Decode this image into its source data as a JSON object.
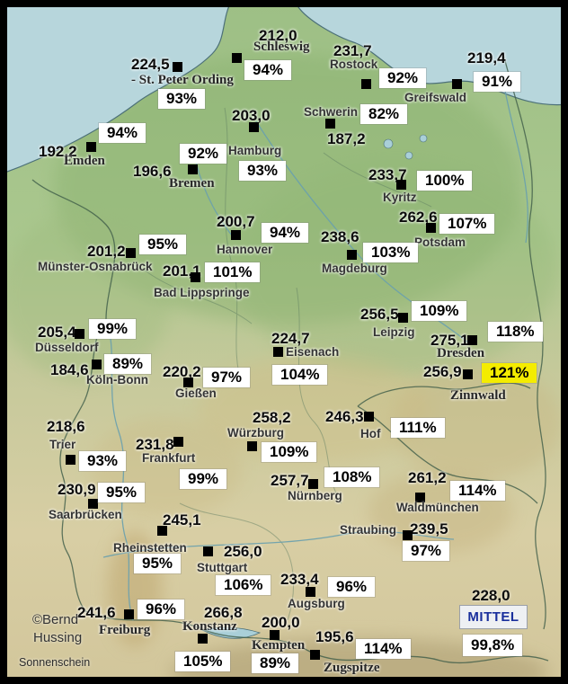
{
  "credits": {
    "copyright_line1": "©Bernd",
    "copyright_line2": "Hussing",
    "caption": "Sonnenschein"
  },
  "mittel": {
    "value": "228,0",
    "label": "MITTEL",
    "percent": "99,8%"
  },
  "colors": {
    "highlight_percent_bg": "#f4ec00",
    "percent_box_bg": "#ffffff",
    "mittel_label_text": "#1a2f9c",
    "marker": "#000000",
    "sea": "#b7d6dc",
    "land_north": "#9dbf85",
    "land_south": "#d8cea4"
  },
  "stations": [
    {
      "id": "st-peter-ording",
      "name": "- St. Peter Ording",
      "value": "224,5",
      "percent": "93%",
      "name_style": "serif",
      "highlight": false,
      "pos": {
        "value": [
          146,
          63
        ],
        "marker": [
          192,
          69
        ],
        "name": [
          146,
          82
        ],
        "percent": [
          176,
          99
        ]
      }
    },
    {
      "id": "schleswig",
      "name": "Schleswig",
      "value": "212,0",
      "percent": "94%",
      "name_style": "serif",
      "highlight": false,
      "pos": {
        "value": [
          288,
          31
        ],
        "marker": [
          258,
          59
        ],
        "name": [
          282,
          45
        ],
        "percent": [
          272,
          67
        ]
      }
    },
    {
      "id": "rostock",
      "name": "Rostock",
      "value": "231,7",
      "percent": "92%",
      "name_style": "sans",
      "highlight": false,
      "pos": {
        "value": [
          371,
          48
        ],
        "marker": [
          402,
          88
        ],
        "name": [
          367,
          65
        ],
        "percent": [
          422,
          76
        ]
      }
    },
    {
      "id": "greifswald",
      "name": "Greifswald",
      "value": "219,4",
      "percent": "91%",
      "name_style": "sans",
      "highlight": false,
      "pos": {
        "value": [
          520,
          56
        ],
        "marker": [
          503,
          88
        ],
        "name": [
          450,
          102
        ],
        "percent": [
          527,
          80
        ]
      }
    },
    {
      "id": "schwerin",
      "name": "Schwerin",
      "value": "187,2",
      "percent": "82%",
      "name_style": "sans",
      "highlight": false,
      "pos": {
        "value": [
          364,
          146
        ],
        "marker": [
          362,
          132
        ],
        "name": [
          338,
          118
        ],
        "percent": [
          401,
          116
        ]
      }
    },
    {
      "id": "hamburg",
      "name": "Hamburg",
      "value": "203,0",
      "percent": "93%",
      "name_style": "sans",
      "highlight": false,
      "pos": {
        "value": [
          258,
          120
        ],
        "marker": [
          277,
          136
        ],
        "name": [
          254,
          161
        ],
        "percent": [
          266,
          179
        ]
      }
    },
    {
      "id": "emden",
      "name": "Emden",
      "value": "192,2",
      "percent": "94%",
      "name_style": "serif",
      "highlight": false,
      "pos": {
        "value": [
          43,
          160
        ],
        "marker": [
          96,
          158
        ],
        "name": [
          71,
          172
        ],
        "percent": [
          110,
          137
        ]
      }
    },
    {
      "id": "bremen",
      "name": "Bremen",
      "value": "196,6",
      "percent": "92%",
      "name_style": "serif",
      "highlight": false,
      "pos": {
        "value": [
          148,
          182
        ],
        "marker": [
          209,
          183
        ],
        "name": [
          188,
          197
        ],
        "percent": [
          200,
          160
        ]
      }
    },
    {
      "id": "kyritz",
      "name": "Kyritz",
      "value": "233,7",
      "percent": "100%",
      "name_style": "sans",
      "highlight": false,
      "pos": {
        "value": [
          410,
          186
        ],
        "marker": [
          441,
          200
        ],
        "name": [
          426,
          213
        ],
        "percent": [
          464,
          190
        ]
      }
    },
    {
      "id": "potsdam",
      "name": "Potsdam",
      "value": "262,6",
      "percent": "107%",
      "name_style": "sans",
      "highlight": false,
      "pos": {
        "value": [
          444,
          233
        ],
        "marker": [
          474,
          248
        ],
        "name": [
          461,
          263
        ],
        "percent": [
          489,
          238
        ]
      }
    },
    {
      "id": "hannover",
      "name": "Hannover",
      "value": "200,7",
      "percent": "94%",
      "name_style": "sans",
      "highlight": false,
      "pos": {
        "value": [
          241,
          238
        ],
        "marker": [
          257,
          256
        ],
        "name": [
          241,
          271
        ],
        "percent": [
          291,
          248
        ]
      }
    },
    {
      "id": "magdeburg",
      "name": "Magdeburg",
      "value": "238,6",
      "percent": "103%",
      "name_style": "sans",
      "highlight": false,
      "pos": {
        "value": [
          357,
          255
        ],
        "marker": [
          386,
          278
        ],
        "name": [
          358,
          292
        ],
        "percent": [
          404,
          270
        ]
      }
    },
    {
      "id": "muenster-osnabrueck",
      "name": "Münster-Osnabrück",
      "value": "201,2",
      "percent": "95%",
      "name_style": "sans",
      "highlight": false,
      "pos": {
        "value": [
          97,
          271
        ],
        "marker": [
          140,
          276
        ],
        "name": [
          42,
          290
        ],
        "percent": [
          155,
          261
        ]
      }
    },
    {
      "id": "bad-lippspringe",
      "name": "Bad Lippspringe",
      "value": "201,1",
      "percent": "101%",
      "name_style": "sans",
      "highlight": false,
      "pos": {
        "value": [
          181,
          293
        ],
        "marker": [
          212,
          303
        ],
        "name": [
          171,
          319
        ],
        "percent": [
          228,
          292
        ]
      }
    },
    {
      "id": "leipzig",
      "name": "Leipzig",
      "value": "256,5",
      "percent": "109%",
      "name_style": "sans",
      "highlight": false,
      "pos": {
        "value": [
          401,
          341
        ],
        "marker": [
          443,
          348
        ],
        "name": [
          415,
          363
        ],
        "percent": [
          458,
          335
        ]
      }
    },
    {
      "id": "dresden",
      "name": "Dresden",
      "value": "275,1",
      "percent": "118%",
      "name_style": "serif",
      "highlight": false,
      "pos": {
        "value": [
          479,
          370
        ],
        "marker": [
          520,
          373
        ],
        "name": [
          486,
          386
        ],
        "percent": [
          543,
          358
        ]
      }
    },
    {
      "id": "zinnwald",
      "name": "Zinnwald",
      "value": "256,9",
      "percent": "121%",
      "name_style": "serif",
      "highlight": true,
      "pos": {
        "value": [
          471,
          405
        ],
        "marker": [
          515,
          411
        ],
        "name": [
          501,
          433
        ],
        "percent": [
          536,
          404
        ]
      }
    },
    {
      "id": "duesseldorf",
      "name": "Düsseldorf",
      "value": "205,4",
      "percent": "99%",
      "name_style": "sans",
      "highlight": false,
      "pos": {
        "value": [
          42,
          361
        ],
        "marker": [
          83,
          366
        ],
        "name": [
          39,
          380
        ],
        "percent": [
          99,
          355
        ]
      }
    },
    {
      "id": "koeln-bonn",
      "name": "Köln-Bonn",
      "value": "184,6",
      "percent": "89%",
      "name_style": "sans",
      "highlight": false,
      "pos": {
        "value": [
          56,
          403
        ],
        "marker": [
          102,
          400
        ],
        "name": [
          96,
          416
        ],
        "percent": [
          116,
          394
        ]
      }
    },
    {
      "id": "giessen",
      "name": "Gießen",
      "value": "220,2",
      "percent": "97%",
      "name_style": "sans",
      "highlight": false,
      "pos": {
        "value": [
          181,
          405
        ],
        "marker": [
          204,
          420
        ],
        "name": [
          195,
          431
        ],
        "percent": [
          226,
          409
        ]
      }
    },
    {
      "id": "eisenach",
      "name": "Eisenach",
      "value": "224,7",
      "percent": "104%",
      "name_style": "sans",
      "highlight": false,
      "pos": {
        "value": [
          302,
          368
        ],
        "marker": [
          304,
          386
        ],
        "name": [
          318,
          385
        ],
        "percent": [
          303,
          406
        ]
      }
    },
    {
      "id": "trier",
      "name": "Trier",
      "value": "218,6",
      "percent": "93%",
      "name_style": "sans",
      "highlight": false,
      "pos": {
        "value": [
          52,
          466
        ],
        "marker": [
          73,
          506
        ],
        "name": [
          55,
          488
        ],
        "percent": [
          88,
          502
        ]
      }
    },
    {
      "id": "frankfurt",
      "name": "Frankfurt",
      "value": "231,8",
      "percent": "99%",
      "name_style": "sans",
      "highlight": false,
      "pos": {
        "value": [
          151,
          486
        ],
        "marker": [
          193,
          486
        ],
        "name": [
          158,
          503
        ],
        "percent": [
          200,
          522
        ]
      }
    },
    {
      "id": "saarbruecken",
      "name": "Saarbrücken",
      "value": "230,9",
      "percent": "95%",
      "name_style": "sans",
      "highlight": false,
      "pos": {
        "value": [
          64,
          536
        ],
        "marker": [
          98,
          555
        ],
        "name": [
          54,
          566
        ],
        "percent": [
          109,
          537
        ]
      }
    },
    {
      "id": "wuerzburg",
      "name": "Würzburg",
      "value": "258,2",
      "percent": "109%",
      "name_style": "sans",
      "highlight": false,
      "pos": {
        "value": [
          281,
          456
        ],
        "marker": [
          275,
          491
        ],
        "name": [
          253,
          475
        ],
        "percent": [
          291,
          492
        ]
      }
    },
    {
      "id": "hof",
      "name": "Hof",
      "value": "246,3",
      "percent": "111%",
      "name_style": "sans",
      "highlight": false,
      "pos": {
        "value": [
          362,
          455
        ],
        "marker": [
          405,
          458
        ],
        "name": [
          401,
          476
        ],
        "percent": [
          435,
          465
        ]
      }
    },
    {
      "id": "nuernberg",
      "name": "Nürnberg",
      "value": "257,7",
      "percent": "108%",
      "name_style": "sans",
      "highlight": false,
      "pos": {
        "value": [
          301,
          526
        ],
        "marker": [
          343,
          533
        ],
        "name": [
          320,
          545
        ],
        "percent": [
          361,
          520
        ]
      }
    },
    {
      "id": "waldmuenchen",
      "name": "Waldmünchen",
      "value": "261,2",
      "percent": "114%",
      "name_style": "sans",
      "highlight": false,
      "pos": {
        "value": [
          454,
          523
        ],
        "marker": [
          462,
          548
        ],
        "name": [
          441,
          558
        ],
        "percent": [
          501,
          535
        ]
      }
    },
    {
      "id": "straubing",
      "name": "Straubing",
      "value": "239,5",
      "percent": "97%",
      "name_style": "sans",
      "highlight": false,
      "pos": {
        "value": [
          456,
          580
        ],
        "marker": [
          448,
          590
        ],
        "name": [
          378,
          583
        ],
        "percent": [
          448,
          602
        ]
      }
    },
    {
      "id": "rheinstetten",
      "name": "Rheinstetten",
      "value": "245,1",
      "percent": "95%",
      "name_style": "sans",
      "highlight": false,
      "pos": {
        "value": [
          181,
          570
        ],
        "marker": [
          175,
          585
        ],
        "name": [
          126,
          603
        ],
        "percent": [
          149,
          616
        ]
      }
    },
    {
      "id": "stuttgart",
      "name": "Stuttgart",
      "value": "256,0",
      "percent": "106%",
      "name_style": "sans",
      "highlight": false,
      "pos": {
        "value": [
          249,
          605
        ],
        "marker": [
          226,
          608
        ],
        "name": [
          219,
          625
        ],
        "percent": [
          240,
          640
        ]
      }
    },
    {
      "id": "augsburg",
      "name": "Augsburg",
      "value": "233,4",
      "percent": "96%",
      "name_style": "sans",
      "highlight": false,
      "pos": {
        "value": [
          312,
          636
        ],
        "marker": [
          340,
          653
        ],
        "name": [
          320,
          665
        ],
        "percent": [
          365,
          642
        ]
      }
    },
    {
      "id": "kempten",
      "name": "Kempten",
      "value": "200,0",
      "percent": "89%",
      "name_style": "serif",
      "highlight": false,
      "pos": {
        "value": [
          291,
          684
        ],
        "marker": [
          300,
          701
        ],
        "name": [
          280,
          711
        ],
        "percent": [
          280,
          727
        ]
      }
    },
    {
      "id": "zugspitze",
      "name": "Zugspitze",
      "value": "195,6",
      "percent": "114%",
      "name_style": "serif",
      "highlight": false,
      "pos": {
        "value": [
          351,
          700
        ],
        "marker": [
          345,
          723
        ],
        "name": [
          360,
          736
        ],
        "percent": [
          396,
          711
        ]
      }
    },
    {
      "id": "konstanz",
      "name": "Konstanz",
      "value": "266,8",
      "percent": "105%",
      "name_style": "serif",
      "highlight": false,
      "pos": {
        "value": [
          227,
          673
        ],
        "marker": [
          220,
          705
        ],
        "name": [
          203,
          690
        ],
        "percent": [
          195,
          725
        ]
      }
    },
    {
      "id": "freiburg",
      "name": "Freiburg",
      "value": "241,6",
      "percent": "96%",
      "name_style": "serif",
      "highlight": false,
      "pos": {
        "value": [
          86,
          673
        ],
        "marker": [
          138,
          678
        ],
        "name": [
          110,
          694
        ],
        "percent": [
          153,
          667
        ]
      }
    }
  ]
}
